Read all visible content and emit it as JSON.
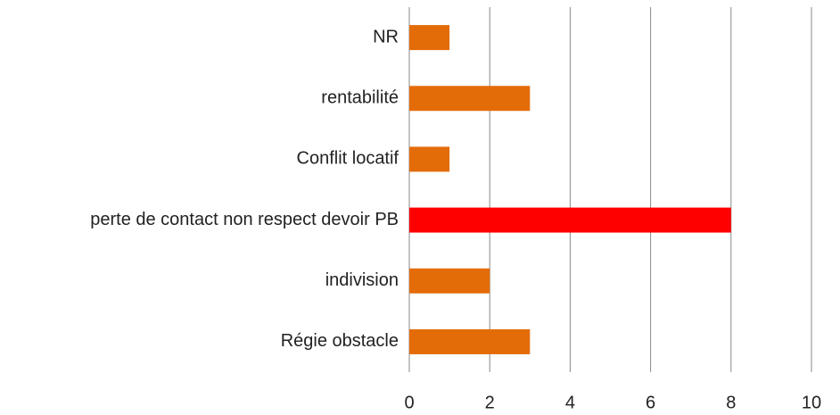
{
  "chart_data": {
    "type": "hbar",
    "categories": [
      "NR",
      "rentabilité",
      "Conflit locatif",
      "perte de contact non respect devoir PB",
      "indivision",
      "Régie obstacle"
    ],
    "values": [
      1,
      3,
      1,
      8,
      2,
      3
    ],
    "colors": [
      "#e36c09",
      "#e36c09",
      "#e36c09",
      "#ff0000",
      "#e36c09",
      "#e36c09"
    ],
    "xlim": [
      0,
      10
    ],
    "xticks": [
      0,
      2,
      4,
      6,
      8,
      10
    ],
    "grid": true
  }
}
